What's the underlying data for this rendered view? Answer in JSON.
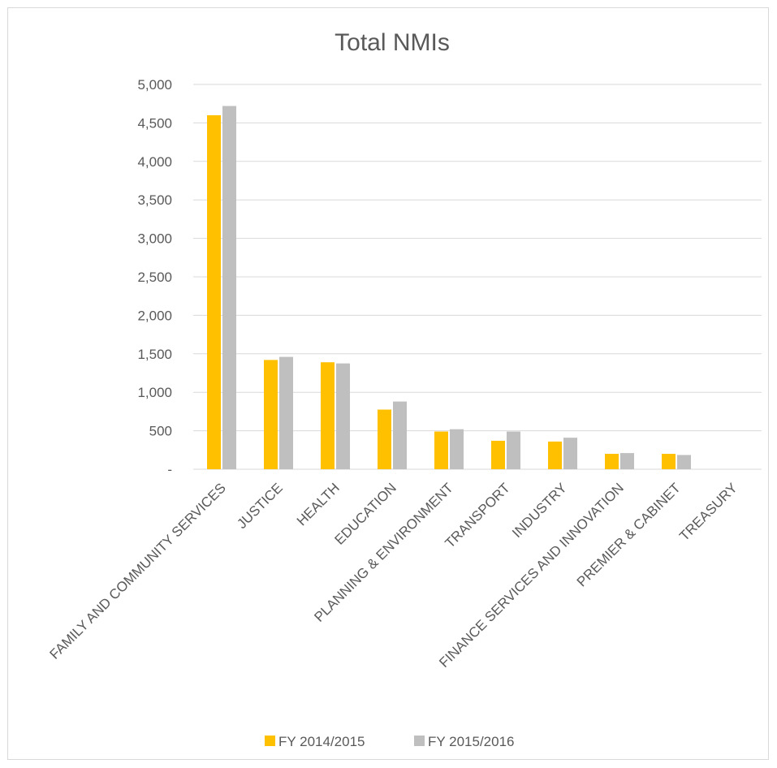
{
  "chart_data": {
    "type": "bar",
    "title": "Total NMIs",
    "xlabel": "",
    "ylabel": "",
    "ylim": [
      0,
      5000
    ],
    "yticks": [
      0,
      500,
      1000,
      1500,
      2000,
      2500,
      3000,
      3500,
      4000,
      4500,
      5000
    ],
    "ytick_labels": [
      "-",
      "500",
      "1,000",
      "1,500",
      "2,000",
      "2,500",
      "3,000",
      "3,500",
      "4,000",
      "4,500",
      "5,000"
    ],
    "grid": "horizontal",
    "legend_position": "bottom",
    "categories": [
      "FAMILY AND COMMUNITY SERVICES",
      "JUSTICE",
      "HEALTH",
      "EDUCATION",
      "PLANNING & ENVIRONMENT",
      "TRANSPORT",
      "INDUSTRY",
      "FINANCE SERVICES AND INNOVATION",
      "PREMIER & CABINET",
      "TREASURY"
    ],
    "series": [
      {
        "name": "FY 2014/2015",
        "color": "#ffc000",
        "values": [
          4600,
          1420,
          1390,
          775,
          490,
          370,
          360,
          200,
          200,
          0
        ]
      },
      {
        "name": "FY 2015/2016",
        "color": "#bfbfbf",
        "values": [
          4720,
          1460,
          1375,
          880,
          520,
          490,
          410,
          210,
          185,
          0
        ]
      }
    ]
  }
}
